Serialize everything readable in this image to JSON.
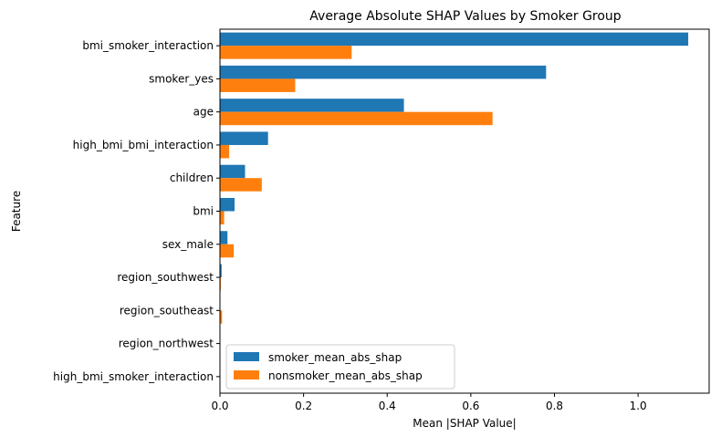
{
  "chart_data": {
    "type": "bar",
    "orientation": "horizontal",
    "title": "Average Absolute SHAP Values by Smoker Group",
    "xlabel": "Mean |SHAP Value|",
    "ylabel": "Feature",
    "xlim": [
      0,
      1.17
    ],
    "xticks": [
      "0.0",
      "0.2",
      "0.4",
      "0.6",
      "0.8",
      "1.0"
    ],
    "grid": false,
    "legend_position": "lower-left",
    "categories": [
      "bmi_smoker_interaction",
      "smoker_yes",
      "age",
      "high_bmi_bmi_interaction",
      "children",
      "bmi",
      "sex_male",
      "region_southwest",
      "region_southeast",
      "region_northwest",
      "high_bmi_smoker_interaction"
    ],
    "series": [
      {
        "name": "smoker_mean_abs_shap",
        "color": "#1f77b4",
        "values": [
          1.12,
          0.78,
          0.44,
          0.115,
          0.06,
          0.035,
          0.018,
          0.004,
          0.001,
          0.001,
          0.0
        ]
      },
      {
        "name": "nonsmoker_mean_abs_shap",
        "color": "#ff7f0e",
        "values": [
          0.315,
          0.18,
          0.652,
          0.022,
          0.1,
          0.01,
          0.033,
          0.002,
          0.005,
          0.0,
          0.0
        ]
      }
    ]
  }
}
